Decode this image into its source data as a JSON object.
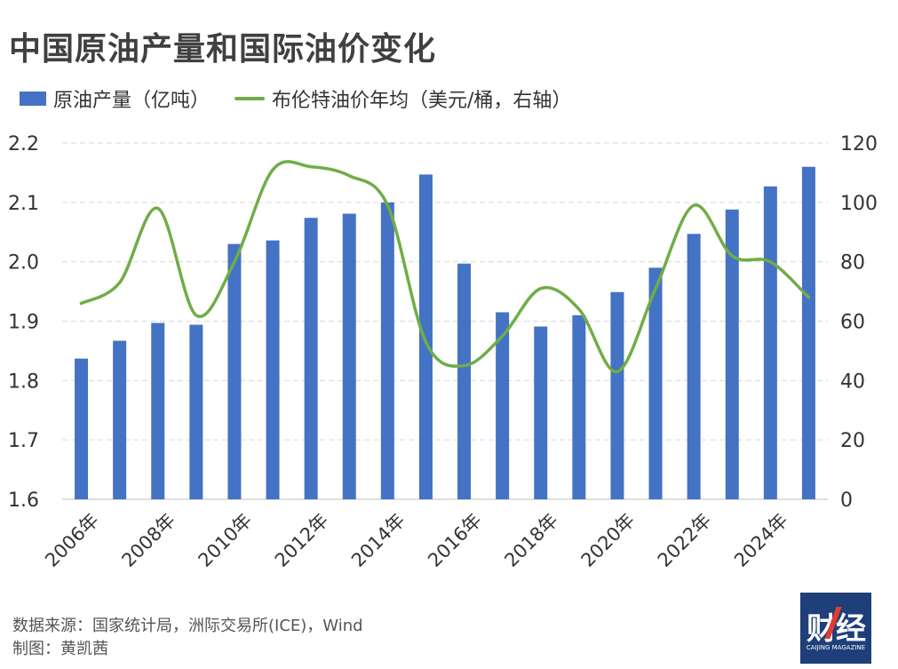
{
  "title": "中国原油产量和国际油价变化",
  "legend": {
    "bar_label": "原油产量（亿吨）",
    "line_label": "布伦特油价年均（美元/桶，右轴）"
  },
  "colors": {
    "bar": "#4472c4",
    "line": "#70ad47",
    "grid": "#d9d9d9",
    "axis_text": "#333333"
  },
  "chart_data": {
    "type": "bar",
    "categories": [
      "2006年",
      "2007年",
      "2008年",
      "2009年",
      "2010年",
      "2011年",
      "2012年",
      "2013年",
      "2014年",
      "2015年",
      "2016年",
      "2017年",
      "2018年",
      "2019年",
      "2020年",
      "2021年",
      "2022年",
      "2023年",
      "2024年",
      "2025年"
    ],
    "x_tick_labels": [
      "2006年",
      "",
      "2008年",
      "",
      "2010年",
      "",
      "2012年",
      "",
      "2014年",
      "",
      "2016年",
      "",
      "2018年",
      "",
      "2020年",
      "",
      "2022年",
      "",
      "2024年",
      ""
    ],
    "series": [
      {
        "name": "原油产量（亿吨）",
        "type": "bar",
        "axis": "left",
        "values": [
          1.837,
          1.867,
          1.897,
          1.894,
          2.03,
          2.036,
          2.074,
          2.081,
          2.1,
          2.147,
          1.997,
          1.915,
          1.891,
          1.91,
          1.949,
          1.99,
          2.047,
          2.088,
          2.127,
          2.16
        ]
      },
      {
        "name": "布伦特油价年均（美元/桶，右轴）",
        "type": "line",
        "axis": "right",
        "smooth": true,
        "values": [
          66,
          73,
          98,
          62,
          80,
          111,
          112,
          109,
          99,
          53,
          45,
          55,
          71,
          64,
          43,
          71,
          99,
          82,
          80,
          68
        ]
      }
    ],
    "y_left": {
      "min": 1.6,
      "max": 2.2,
      "ticks": [
        "1.6",
        "1.7",
        "1.8",
        "1.9",
        "2.0",
        "2.1",
        "2.2"
      ]
    },
    "y_right": {
      "min": 0,
      "max": 120,
      "ticks": [
        "0",
        "20",
        "40",
        "60",
        "80",
        "100",
        "120"
      ]
    },
    "grid": true,
    "legend_position": "top-left"
  },
  "footer": {
    "source": "数据来源：国家统计局，洲际交易所(ICE)，Wind",
    "author": "制图：黄凯茜"
  },
  "logo": {
    "text": "财经",
    "subtext": "CAIJING MAGAZINE"
  }
}
